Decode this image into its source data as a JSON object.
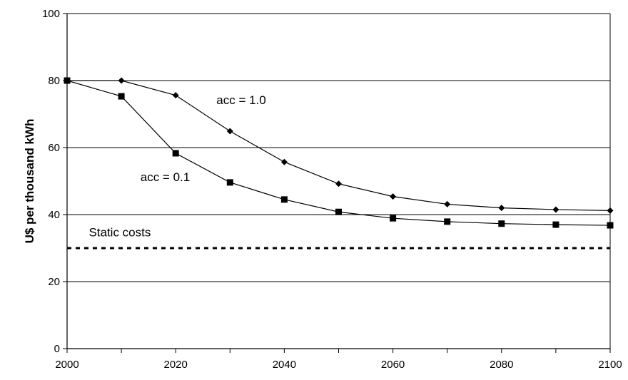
{
  "chart_data": {
    "type": "line",
    "title": "",
    "xlabel": "",
    "ylabel": "U$ per thousand kWh",
    "xlim": [
      2000,
      2100
    ],
    "ylim": [
      0,
      100
    ],
    "x_ticks": [
      2000,
      2020,
      2040,
      2060,
      2080,
      2100
    ],
    "y_ticks": [
      0,
      20,
      40,
      60,
      80,
      100
    ],
    "grid": "horizontal",
    "legend": "none",
    "series": [
      {
        "name": "acc = 1.0",
        "marker": "diamond",
        "color": "#000000",
        "x": [
          2000,
          2010,
          2020,
          2030,
          2040,
          2050,
          2060,
          2070,
          2080,
          2090,
          2100
        ],
        "y": [
          80,
          80,
          75.6,
          64.9,
          55.7,
          49.2,
          45.4,
          43.1,
          42.0,
          41.5,
          41.2
        ]
      },
      {
        "name": "acc = 0.1",
        "marker": "square",
        "color": "#000000",
        "x": [
          2000,
          2010,
          2020,
          2030,
          2040,
          2050,
          2060,
          2070,
          2080,
          2090,
          2100
        ],
        "y": [
          80,
          75.3,
          58.3,
          49.6,
          44.5,
          40.8,
          38.9,
          37.9,
          37.3,
          37.0,
          36.8
        ]
      },
      {
        "name": "Static costs",
        "marker": "none",
        "style": "dashed",
        "color": "#000000",
        "x": [
          2000,
          2100
        ],
        "y": [
          30,
          30
        ]
      }
    ],
    "annotations": [
      {
        "text": "acc = 1.0",
        "x": 2027.5,
        "y": 73
      },
      {
        "text": "acc = 0.1",
        "x": 2013.5,
        "y": 50
      },
      {
        "text": "Static costs",
        "x": 2004,
        "y": 33.5
      }
    ]
  }
}
